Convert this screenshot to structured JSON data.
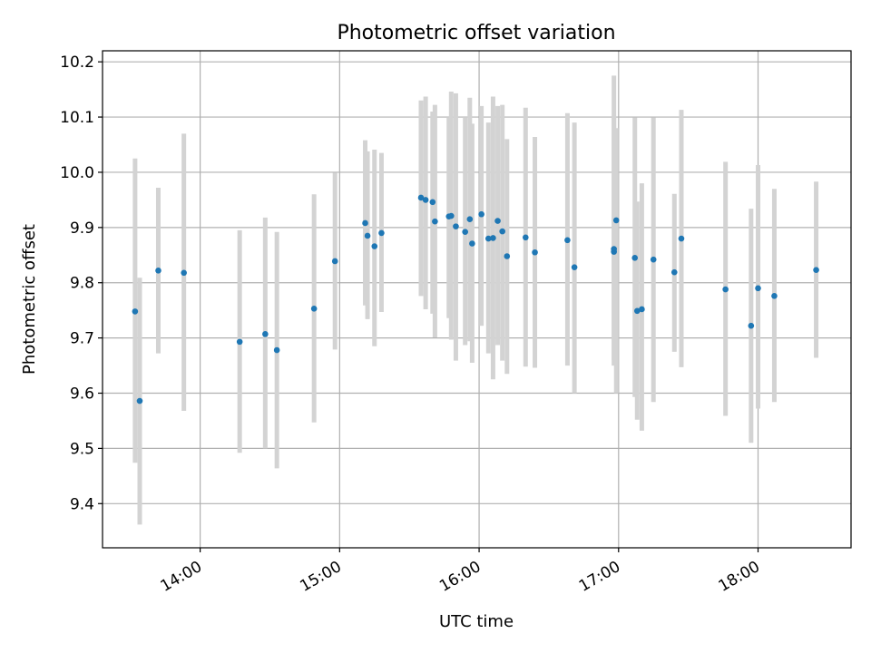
{
  "chart_data": {
    "type": "scatter",
    "title": "Photometric offset variation",
    "xlabel": "UTC time",
    "ylabel": "Photometric offset",
    "x_unit": "UTC time (HH:MM)",
    "xlim": [
      "13:18",
      "18:40"
    ],
    "ylim": [
      9.32,
      10.22
    ],
    "x_ticks": [
      "14:00",
      "15:00",
      "16:00",
      "17:00",
      "18:00"
    ],
    "y_ticks": [
      9.4,
      9.5,
      9.6,
      9.7,
      9.8,
      9.9,
      10.0,
      10.1,
      10.2
    ],
    "grid": true,
    "point_color": "#1f77b4",
    "errorbar_color": "#d3d3d3",
    "series": [
      {
        "x": [
          "13:32",
          "13:34",
          "13:42",
          "13:53",
          "14:17",
          "14:28",
          "14:33",
          "14:49",
          "14:58",
          "15:11",
          "15:12",
          "15:15",
          "15:18",
          "15:35",
          "15:37",
          "15:40",
          "15:41",
          "15:47",
          "15:48",
          "15:50",
          "15:54",
          "15:56",
          "15:57",
          "16:01",
          "16:04",
          "16:06",
          "16:08",
          "16:10",
          "16:12",
          "16:20",
          "16:24",
          "16:38",
          "16:41",
          "16:58",
          "16:58",
          "16:59",
          "17:07",
          "17:08",
          "17:10",
          "17:15",
          "17:24",
          "17:27",
          "17:46",
          "17:57",
          "18:00",
          "18:07",
          "18:25"
        ],
        "y": [
          9.748,
          9.586,
          9.822,
          9.818,
          9.693,
          9.707,
          9.678,
          9.753,
          9.839,
          9.908,
          9.885,
          9.866,
          9.89,
          9.954,
          9.95,
          9.946,
          9.911,
          9.92,
          9.921,
          9.902,
          9.892,
          9.915,
          9.871,
          9.924,
          9.88,
          9.881,
          9.912,
          9.893,
          9.848,
          9.882,
          9.855,
          9.877,
          9.828,
          9.856,
          9.861,
          9.913,
          9.845,
          9.749,
          9.752,
          9.842,
          9.819,
          9.88,
          9.788,
          9.722,
          9.79,
          9.776,
          9.823
        ],
        "y_low": [
          9.474,
          9.362,
          9.672,
          9.568,
          9.492,
          9.5,
          9.464,
          9.547,
          9.679,
          9.759,
          9.734,
          9.685,
          9.747,
          9.776,
          9.752,
          9.744,
          9.701,
          9.736,
          9.697,
          9.659,
          9.687,
          9.694,
          9.655,
          9.722,
          9.672,
          9.625,
          9.687,
          9.659,
          9.635,
          9.648,
          9.646,
          9.65,
          9.6,
          9.66,
          9.65,
          9.6,
          9.593,
          9.552,
          9.532,
          9.584,
          9.675,
          9.647,
          9.559,
          9.51,
          9.572,
          9.584,
          9.664
        ],
        "y_high": [
          10.025,
          9.809,
          9.972,
          10.07,
          9.895,
          9.918,
          9.892,
          9.96,
          9.999,
          10.058,
          10.038,
          10.041,
          10.035,
          10.13,
          10.137,
          10.11,
          10.122,
          10.1,
          10.146,
          10.143,
          10.1,
          10.135,
          10.088,
          10.12,
          10.09,
          10.137,
          10.12,
          10.122,
          10.06,
          10.117,
          10.064,
          10.107,
          10.09,
          10.175,
          10.1,
          10.08,
          10.099,
          9.947,
          9.98,
          10.099,
          9.961,
          10.113,
          10.019,
          9.934,
          10.013,
          9.97,
          9.983
        ]
      }
    ]
  }
}
